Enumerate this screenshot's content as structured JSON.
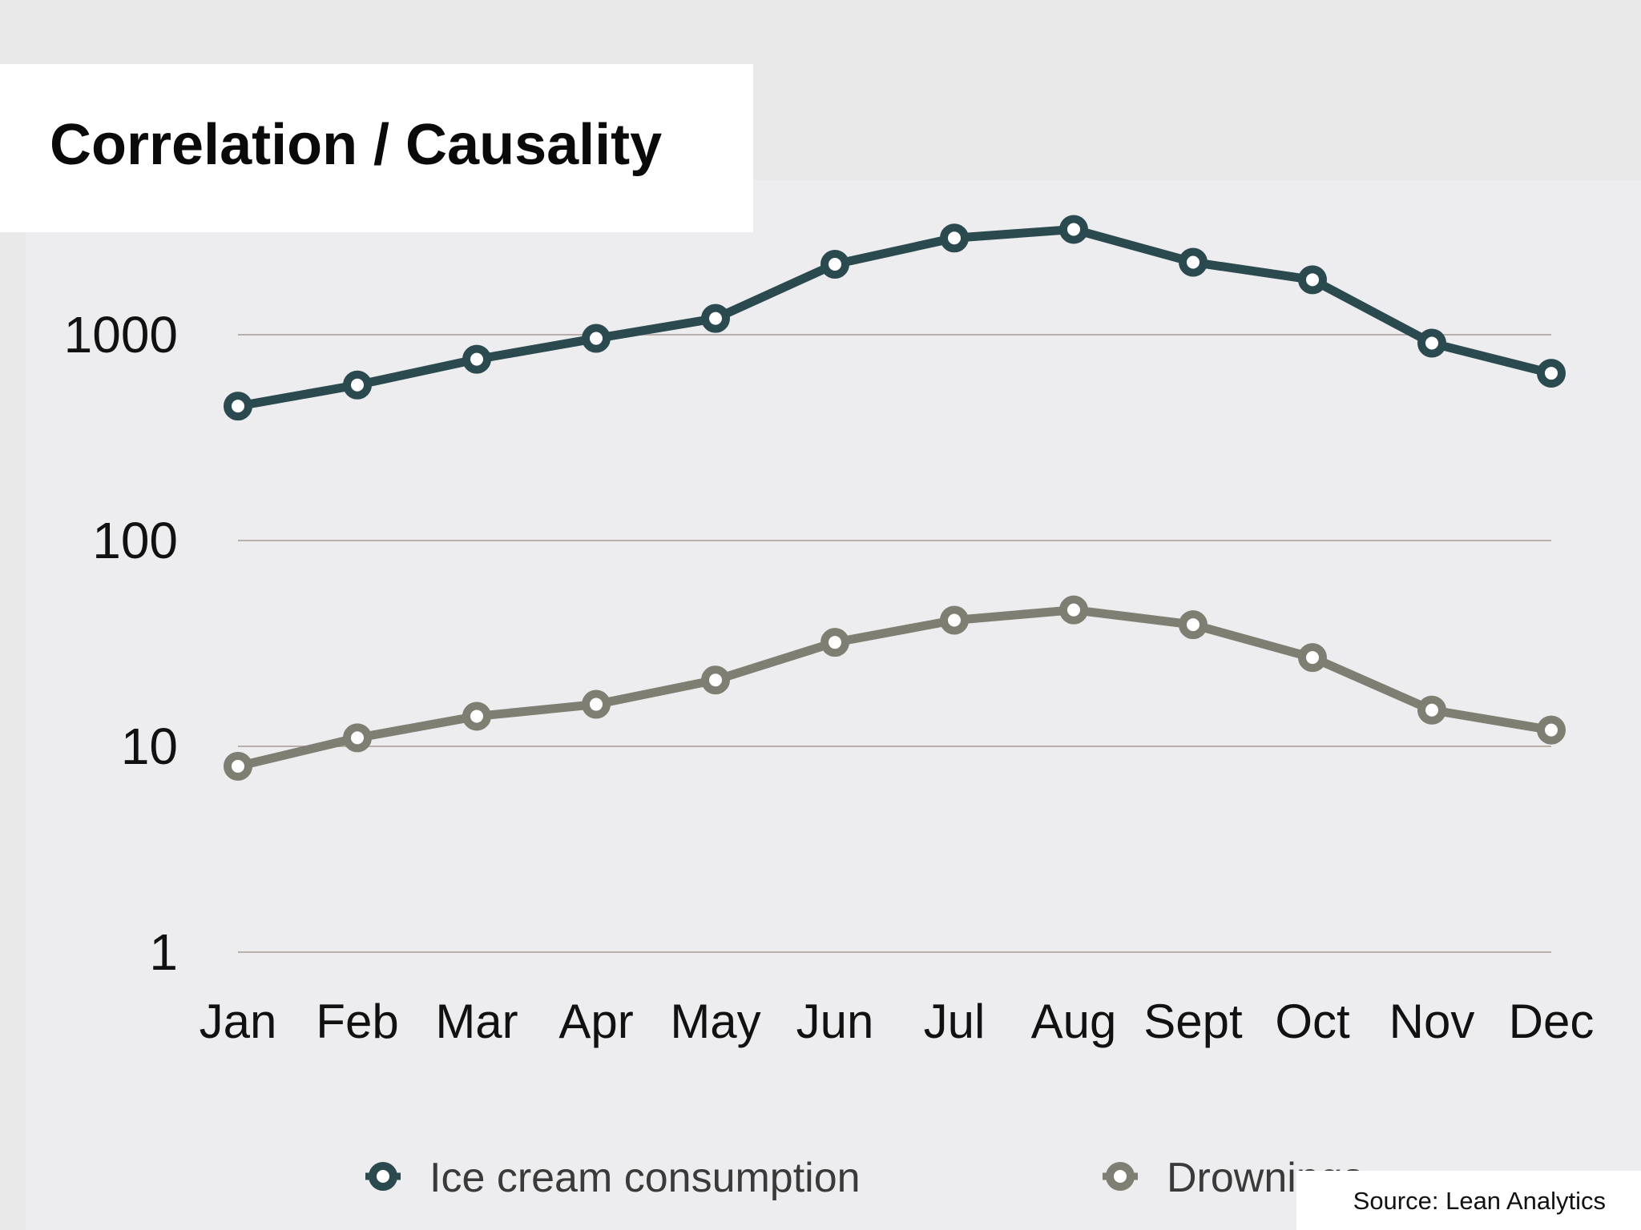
{
  "page": {
    "title": "Correlation / Causality",
    "source": "Source: Lean Analytics"
  },
  "chart_data": {
    "type": "line",
    "title": "",
    "xlabel": "",
    "ylabel": "",
    "yscale": "log",
    "ylim": [
      1,
      3162
    ],
    "yticks": [
      "1000",
      "100",
      "10",
      "1"
    ],
    "ytick_values": [
      1000,
      100,
      10,
      1
    ],
    "grid": true,
    "legend": "bottom",
    "categories": [
      "Jan",
      "Feb",
      "Mar",
      "Apr",
      "May",
      "Jun",
      "Jul",
      "Aug",
      "Sept",
      "Oct",
      "Nov",
      "Dec"
    ],
    "series": [
      {
        "name": "Ice cream consumption",
        "color": "#2b4a4f",
        "values": [
          450,
          570,
          760,
          960,
          1200,
          2200,
          2950,
          3250,
          2250,
          1850,
          910,
          650
        ]
      },
      {
        "name": "Drownings",
        "color": "#7f7e72",
        "values": [
          8,
          11,
          14,
          16,
          21,
          32,
          41,
          46,
          39,
          27,
          15,
          12
        ]
      }
    ]
  }
}
